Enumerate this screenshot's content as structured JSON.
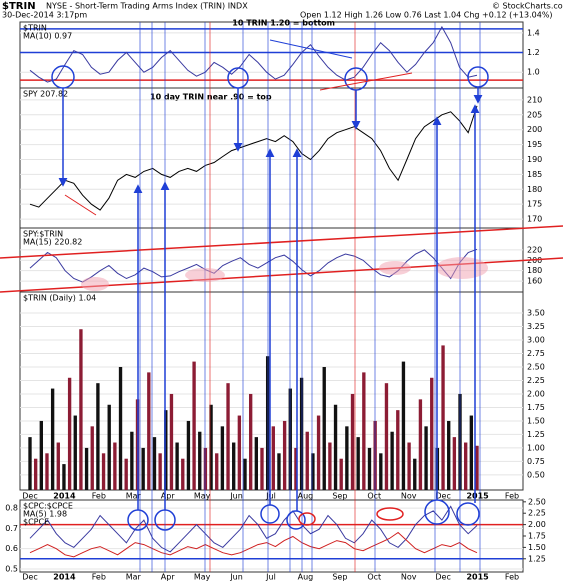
{
  "header": {
    "symbol": "$TRIN",
    "title": "NYSE - Short-Term Trading Arms Index (TRIN) INDX",
    "date": "30-Dec-2014 3:17pm",
    "quote": "Open 1.12 High 1.26 Low 0.76 Last 1.04 Chg +0.12 (+13.04%)",
    "credit": "© StockCharts.com"
  },
  "x_axis_labels": [
    "Dec",
    "2014",
    "Feb",
    "Mar",
    "Apr",
    "May",
    "Jun",
    "Jul",
    "Aug",
    "Sep",
    "Oct",
    "Nov",
    "Dec",
    "2015",
    "Feb"
  ],
  "chart_data": [
    {
      "type": "line",
      "title": "$TRIN",
      "annotations": [
        "10 TRIN 1.20 = bottom",
        "10 day TRIN near .90 = top"
      ],
      "ylim": [
        0.84,
        1.51
      ],
      "yticks": [
        {
          "value": 1,
          "label": "1.0"
        },
        1.2,
        1.4
      ],
      "hlines": [
        {
          "value": 1.44,
          "color": "#1f3fd6"
        },
        {
          "value": 1.2,
          "color": "#1f3fd6"
        },
        {
          "value": 0.92,
          "color": "#e02020"
        }
      ],
      "series": [
        {
          "name": "MA(10) 0.97",
          "color": "#3a3aa0",
          "values": [
            1.02,
            0.95,
            0.9,
            0.93,
            1.08,
            1.22,
            1.18,
            1.05,
            0.98,
            1.0,
            1.12,
            1.2,
            1.1,
            1.0,
            1.05,
            1.15,
            1.22,
            1.12,
            1.02,
            0.96,
            1.0,
            1.1,
            1.05,
            0.98,
            1.06,
            1.18,
            1.1,
            1.0,
            0.93,
            0.97,
            1.08,
            1.2,
            1.28,
            1.16,
            1.05,
            0.97,
            0.92,
            0.95,
            1.05,
            1.18,
            1.3,
            1.22,
            1.1,
            1.0,
            1.08,
            1.2,
            1.3,
            1.46,
            1.3,
            1.05,
            0.95,
            0.97
          ]
        }
      ]
    },
    {
      "type": "line",
      "annotations": [],
      "ylim": [
        167,
        214
      ],
      "yticks": [
        170,
        175,
        180,
        185,
        190,
        195,
        200,
        205,
        210
      ],
      "hlines": [],
      "series": [
        {
          "name": "SPY 207.82",
          "color": "#000000",
          "values": [
            175,
            174,
            177,
            180,
            183,
            182,
            178,
            175,
            173,
            177,
            183,
            185,
            184,
            186,
            187,
            185,
            184,
            186,
            187,
            186,
            188,
            189,
            191,
            193,
            194,
            195,
            196,
            197,
            196,
            198,
            196,
            192,
            190,
            193,
            197,
            199,
            200,
            201,
            199,
            197,
            193,
            187,
            183,
            190,
            197,
            201,
            203,
            205,
            206,
            203,
            199,
            208
          ]
        }
      ]
    },
    {
      "type": "line",
      "title": "SPY:$TRIN",
      "annotations": [],
      "ylim": [
        139,
        262
      ],
      "yticks": [
        160,
        180,
        200,
        220
      ],
      "hlines": [],
      "series": [
        {
          "name": "MA(15) 220.82",
          "color": "#3a3aa0",
          "values": [
            185,
            200,
            215,
            205,
            180,
            165,
            158,
            168,
            180,
            190,
            175,
            165,
            172,
            185,
            178,
            168,
            170,
            178,
            185,
            192,
            182,
            175,
            190,
            198,
            205,
            192,
            185,
            195,
            205,
            210,
            198,
            182,
            170,
            180,
            195,
            205,
            212,
            208,
            200,
            185,
            172,
            168,
            180,
            198,
            212,
            220,
            205,
            185,
            165,
            195,
            215,
            221
          ]
        }
      ]
    },
    {
      "type": "bar",
      "title": "$TRIN (Daily) 1.04",
      "colors": [
        "#111111",
        "#8c1c34"
      ],
      "annotations": [],
      "ylim": [
        0.22,
        3.89
      ],
      "yticks": [
        {
          "value": 0.5,
          "label": "0.50"
        },
        {
          "value": 0.75,
          "label": "0.75"
        },
        {
          "value": 1,
          "label": "1.00"
        },
        {
          "value": 1.25,
          "label": "1.25"
        },
        {
          "value": 1.5,
          "label": "1.50"
        },
        {
          "value": 1.75,
          "label": "1.75"
        },
        {
          "value": 2,
          "label": "2.00"
        },
        {
          "value": 2.25,
          "label": "2.25"
        },
        {
          "value": 2.5,
          "label": "2.50"
        },
        {
          "value": 2.75,
          "label": "2.75"
        },
        {
          "value": 3,
          "label": "3.00"
        },
        {
          "value": 3.25,
          "label": "3.25"
        },
        {
          "value": 3.5,
          "label": "3.50"
        }
      ],
      "hlines": [],
      "series": [
        {
          "name": "$TRIN (Daily) 1.04",
          "values": [
            1.2,
            0.8,
            1.5,
            0.9,
            2.1,
            1.1,
            0.7,
            2.3,
            1.6,
            3.2,
            1.0,
            1.4,
            2.2,
            0.9,
            1.8,
            1.1,
            2.5,
            0.8,
            1.3,
            1.9,
            1.0,
            2.4,
            1.2,
            0.9,
            1.7,
            2.0,
            1.1,
            0.8,
            1.5,
            2.6,
            1.3,
            1.0,
            1.8,
            0.9,
            1.4,
            2.2,
            1.1,
            1.6,
            0.8,
            2.0,
            1.2,
            1.0,
            2.7,
            1.4,
            0.9,
            1.5,
            2.1,
            1.0,
            2.3,
            1.3,
            0.9,
            1.6,
            2.5,
            1.1,
            1.8,
            0.8,
            1.4,
            2.0,
            1.2,
            2.4,
            1.0,
            1.5,
            0.9,
            2.2,
            1.3,
            1.7,
            2.6,
            1.1,
            0.8,
            1.9,
            1.4,
            2.3,
            1.0,
            2.9,
            1.5,
            1.2,
            2.0,
            1.1,
            1.6,
            1.04
          ]
        }
      ]
    },
    {
      "type": "line",
      "title": "$CPC:$CPCE",
      "annotations": [],
      "ylim": [
        0.485,
        0.84
      ],
      "yticks": [
        0.5,
        0.6,
        0.7,
        0.8
      ],
      "y2lim": [
        0.96,
        2.54
      ],
      "y2ticks": [
        {
          "value": 1.25,
          "label": "1.25"
        },
        {
          "value": 1.5,
          "label": "1.50"
        },
        {
          "value": 1.75,
          "label": "1.75"
        },
        {
          "value": 2,
          "label": "2.00"
        },
        {
          "value": 2.25,
          "label": "2.25"
        },
        {
          "value": 2.5,
          "label": "2.50"
        }
      ],
      "hlines": [
        {
          "value": 2,
          "color": "#e02020",
          "axis": "y2"
        },
        {
          "value": 1.25,
          "color": "#1f3fd6",
          "axis": "y2"
        }
      ],
      "series": [
        {
          "name": "MA(5) 1.98",
          "color": "#3a3aa0",
          "axis": "y2",
          "values": [
            1.7,
            1.9,
            2.1,
            1.8,
            1.6,
            1.5,
            1.7,
            1.9,
            2.2,
            2.0,
            1.8,
            1.6,
            1.9,
            2.1,
            1.7,
            1.5,
            1.4,
            1.6,
            1.8,
            2.0,
            1.8,
            1.6,
            1.5,
            1.7,
            1.9,
            2.2,
            2.0,
            1.7,
            1.8,
            2.1,
            2.3,
            2.0,
            1.8,
            1.9,
            2.2,
            2.0,
            1.7,
            1.6,
            1.8,
            2.1,
            1.9,
            1.6,
            1.5,
            1.7,
            2.0,
            2.2,
            2.3,
            2.1,
            2.4,
            2.0,
            1.8,
            1.98
          ]
        },
        {
          "name": "$CPCE",
          "color": "#d02020",
          "values": [
            0.58,
            0.6,
            0.62,
            0.6,
            0.57,
            0.56,
            0.58,
            0.6,
            0.61,
            0.59,
            0.57,
            0.6,
            0.63,
            0.62,
            0.6,
            0.58,
            0.57,
            0.59,
            0.61,
            0.6,
            0.62,
            0.6,
            0.58,
            0.57,
            0.58,
            0.6,
            0.62,
            0.63,
            0.61,
            0.64,
            0.66,
            0.63,
            0.61,
            0.6,
            0.62,
            0.64,
            0.63,
            0.6,
            0.59,
            0.61,
            0.63,
            0.65,
            0.68,
            0.64,
            0.6,
            0.58,
            0.6,
            0.62,
            0.61,
            0.63,
            0.6,
            0.58
          ]
        }
      ]
    }
  ]
}
